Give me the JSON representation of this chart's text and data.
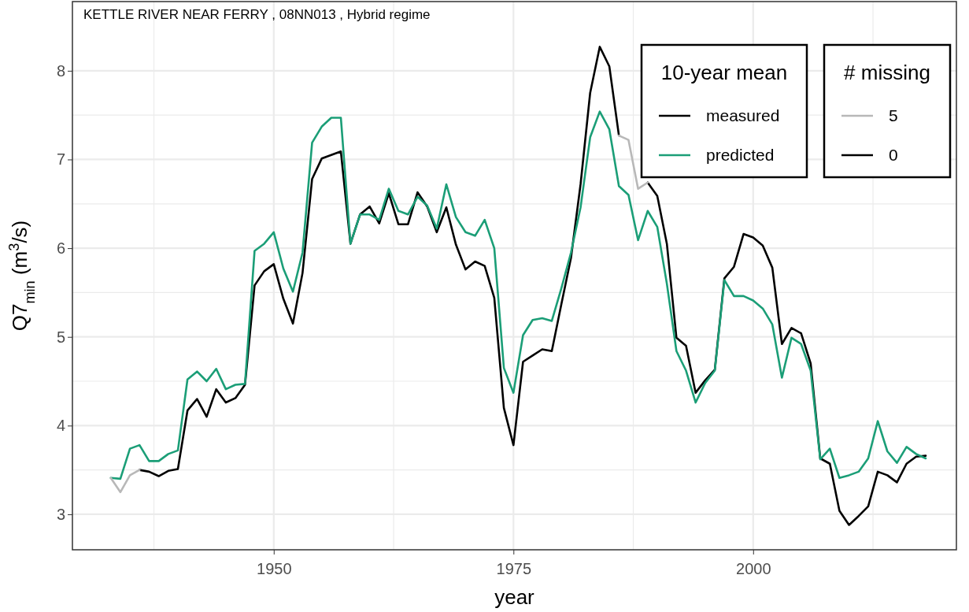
{
  "chart_data": {
    "type": "line",
    "title": "KETTLE RIVER NEAR FERRY ,  08NN013 ,  Hybrid  regime",
    "xlabel": "year",
    "ylabel": "Q7$_{min}$ (m$^{3}$/s)",
    "legend_title": "10-year mean",
    "legend": "top right",
    "grid": true,
    "line_style": "solid",
    "marker": "none",
    "x": [
      1933,
      1934,
      1935,
      1936,
      1937,
      1938,
      1939,
      1940,
      1941,
      1942,
      1943,
      1944,
      1945,
      1946,
      1947,
      1948,
      1949,
      1950,
      1951,
      1952,
      1953,
      1954,
      1955,
      1956,
      1957,
      1958,
      1959,
      1960,
      1961,
      1962,
      1963,
      1964,
      1965,
      1966,
      1967,
      1968,
      1969,
      1970,
      1971,
      1972,
      1973,
      1974,
      1975,
      1976,
      1977,
      1978,
      1979,
      1980,
      1981,
      1982,
      1983,
      1984,
      1985,
      1986,
      1987,
      1988,
      1989,
      1990,
      1991,
      1992,
      1993,
      1994,
      1995,
      1996,
      1997,
      1998,
      1999,
      2000,
      2001,
      2002,
      2003,
      2004,
      2005,
      2006,
      2007,
      2008,
      2009,
      2010,
      2011,
      2012,
      2013,
      2014,
      2015,
      2016,
      2017,
      2018
    ],
    "xlim": [
      1929,
      2021.2
    ],
    "xticks": [
      {
        "value": 1937.5,
        "label": null
      },
      1950,
      {
        "value": 1962.5,
        "label": null
      },
      1975,
      {
        "value": 1987.5,
        "label": null
      },
      2000,
      {
        "value": 2012.5,
        "label": null
      }
    ],
    "ylim": [
      2.6,
      8.78
    ],
    "yticks": [
      3,
      {
        "value": 3.5,
        "label": null
      },
      4,
      {
        "value": 4.5,
        "label": null
      },
      5,
      {
        "value": 5.5,
        "label": null
      },
      6,
      {
        "value": 6.5,
        "label": null
      },
      7,
      {
        "value": 7.5,
        "label": null
      },
      8
    ],
    "annotations": [
      "# missing",
      "0"
    ],
    "series": [
      {
        "name": "measured",
        "color": "#000000",
        "values": [
          null,
          null,
          null,
          3.5,
          3.48,
          3.43,
          3.49,
          3.51,
          4.17,
          4.3,
          4.1,
          4.41,
          4.26,
          4.31,
          4.46,
          5.58,
          5.74,
          5.82,
          5.43,
          5.15,
          5.72,
          6.78,
          7.01,
          7.05,
          7.09,
          6.05,
          6.38,
          6.47,
          6.28,
          6.62,
          6.27,
          6.27,
          6.63,
          6.47,
          6.18,
          6.46,
          6.04,
          5.76,
          5.85,
          5.8,
          5.44,
          4.2,
          3.78,
          4.72,
          4.79,
          4.86,
          4.84,
          5.37,
          5.89,
          6.72,
          7.75,
          8.27,
          8.05,
          7.27,
          null,
          null,
          6.74,
          6.59,
          6.05,
          4.99,
          4.9,
          4.37,
          4.51,
          4.63,
          5.66,
          5.79,
          6.16,
          6.12,
          6.03,
          5.78,
          4.92,
          5.1,
          5.04,
          4.7,
          3.63,
          3.57,
          3.04,
          2.88,
          2.98,
          3.09,
          3.48,
          3.44,
          3.36,
          3.57,
          3.65,
          3.66
        ]
      },
      {
        "name": "predicted",
        "color": "#1b9e77",
        "values": [
          3.41,
          3.4,
          3.74,
          3.78,
          3.6,
          3.6,
          3.68,
          3.72,
          4.52,
          4.61,
          4.5,
          4.64,
          4.41,
          4.46,
          4.47,
          5.97,
          6.05,
          6.18,
          5.77,
          5.51,
          5.95,
          7.19,
          7.37,
          7.47,
          7.47,
          6.05,
          6.38,
          6.38,
          6.32,
          6.67,
          6.42,
          6.38,
          6.58,
          6.48,
          6.22,
          6.72,
          6.35,
          6.18,
          6.14,
          6.32,
          6.0,
          4.65,
          4.37,
          5.02,
          5.19,
          5.21,
          5.18,
          5.55,
          5.95,
          6.46,
          7.25,
          7.54,
          7.34,
          6.7,
          6.6,
          6.09,
          6.42,
          6.24,
          5.6,
          4.84,
          4.62,
          4.26,
          4.48,
          4.62,
          5.64,
          5.46,
          5.46,
          5.41,
          5.32,
          5.14,
          4.54,
          4.99,
          4.92,
          4.62,
          3.62,
          3.74,
          3.41,
          3.44,
          3.48,
          3.63,
          4.05,
          3.71,
          3.58,
          3.76,
          3.68,
          3.63
        ]
      },
      {
        "name": "5",
        "color": "#b8b8b8",
        "values": [
          3.41,
          3.25,
          3.44,
          3.5,
          null,
          null,
          null,
          null,
          null,
          null,
          null,
          null,
          null,
          null,
          null,
          null,
          null,
          null,
          null,
          null,
          null,
          null,
          null,
          null,
          null,
          null,
          null,
          null,
          null,
          null,
          null,
          null,
          null,
          null,
          null,
          null,
          null,
          null,
          null,
          null,
          null,
          null,
          null,
          null,
          null,
          null,
          null,
          null,
          null,
          null,
          null,
          null,
          null,
          7.27,
          7.22,
          6.67,
          6.74,
          null,
          null,
          null,
          null,
          null,
          null,
          null,
          null,
          null,
          null,
          null,
          null,
          null,
          null,
          null,
          null,
          null,
          null,
          null,
          null,
          null,
          null,
          null,
          null,
          null,
          null,
          null,
          null,
          null
        ]
      }
    ]
  }
}
